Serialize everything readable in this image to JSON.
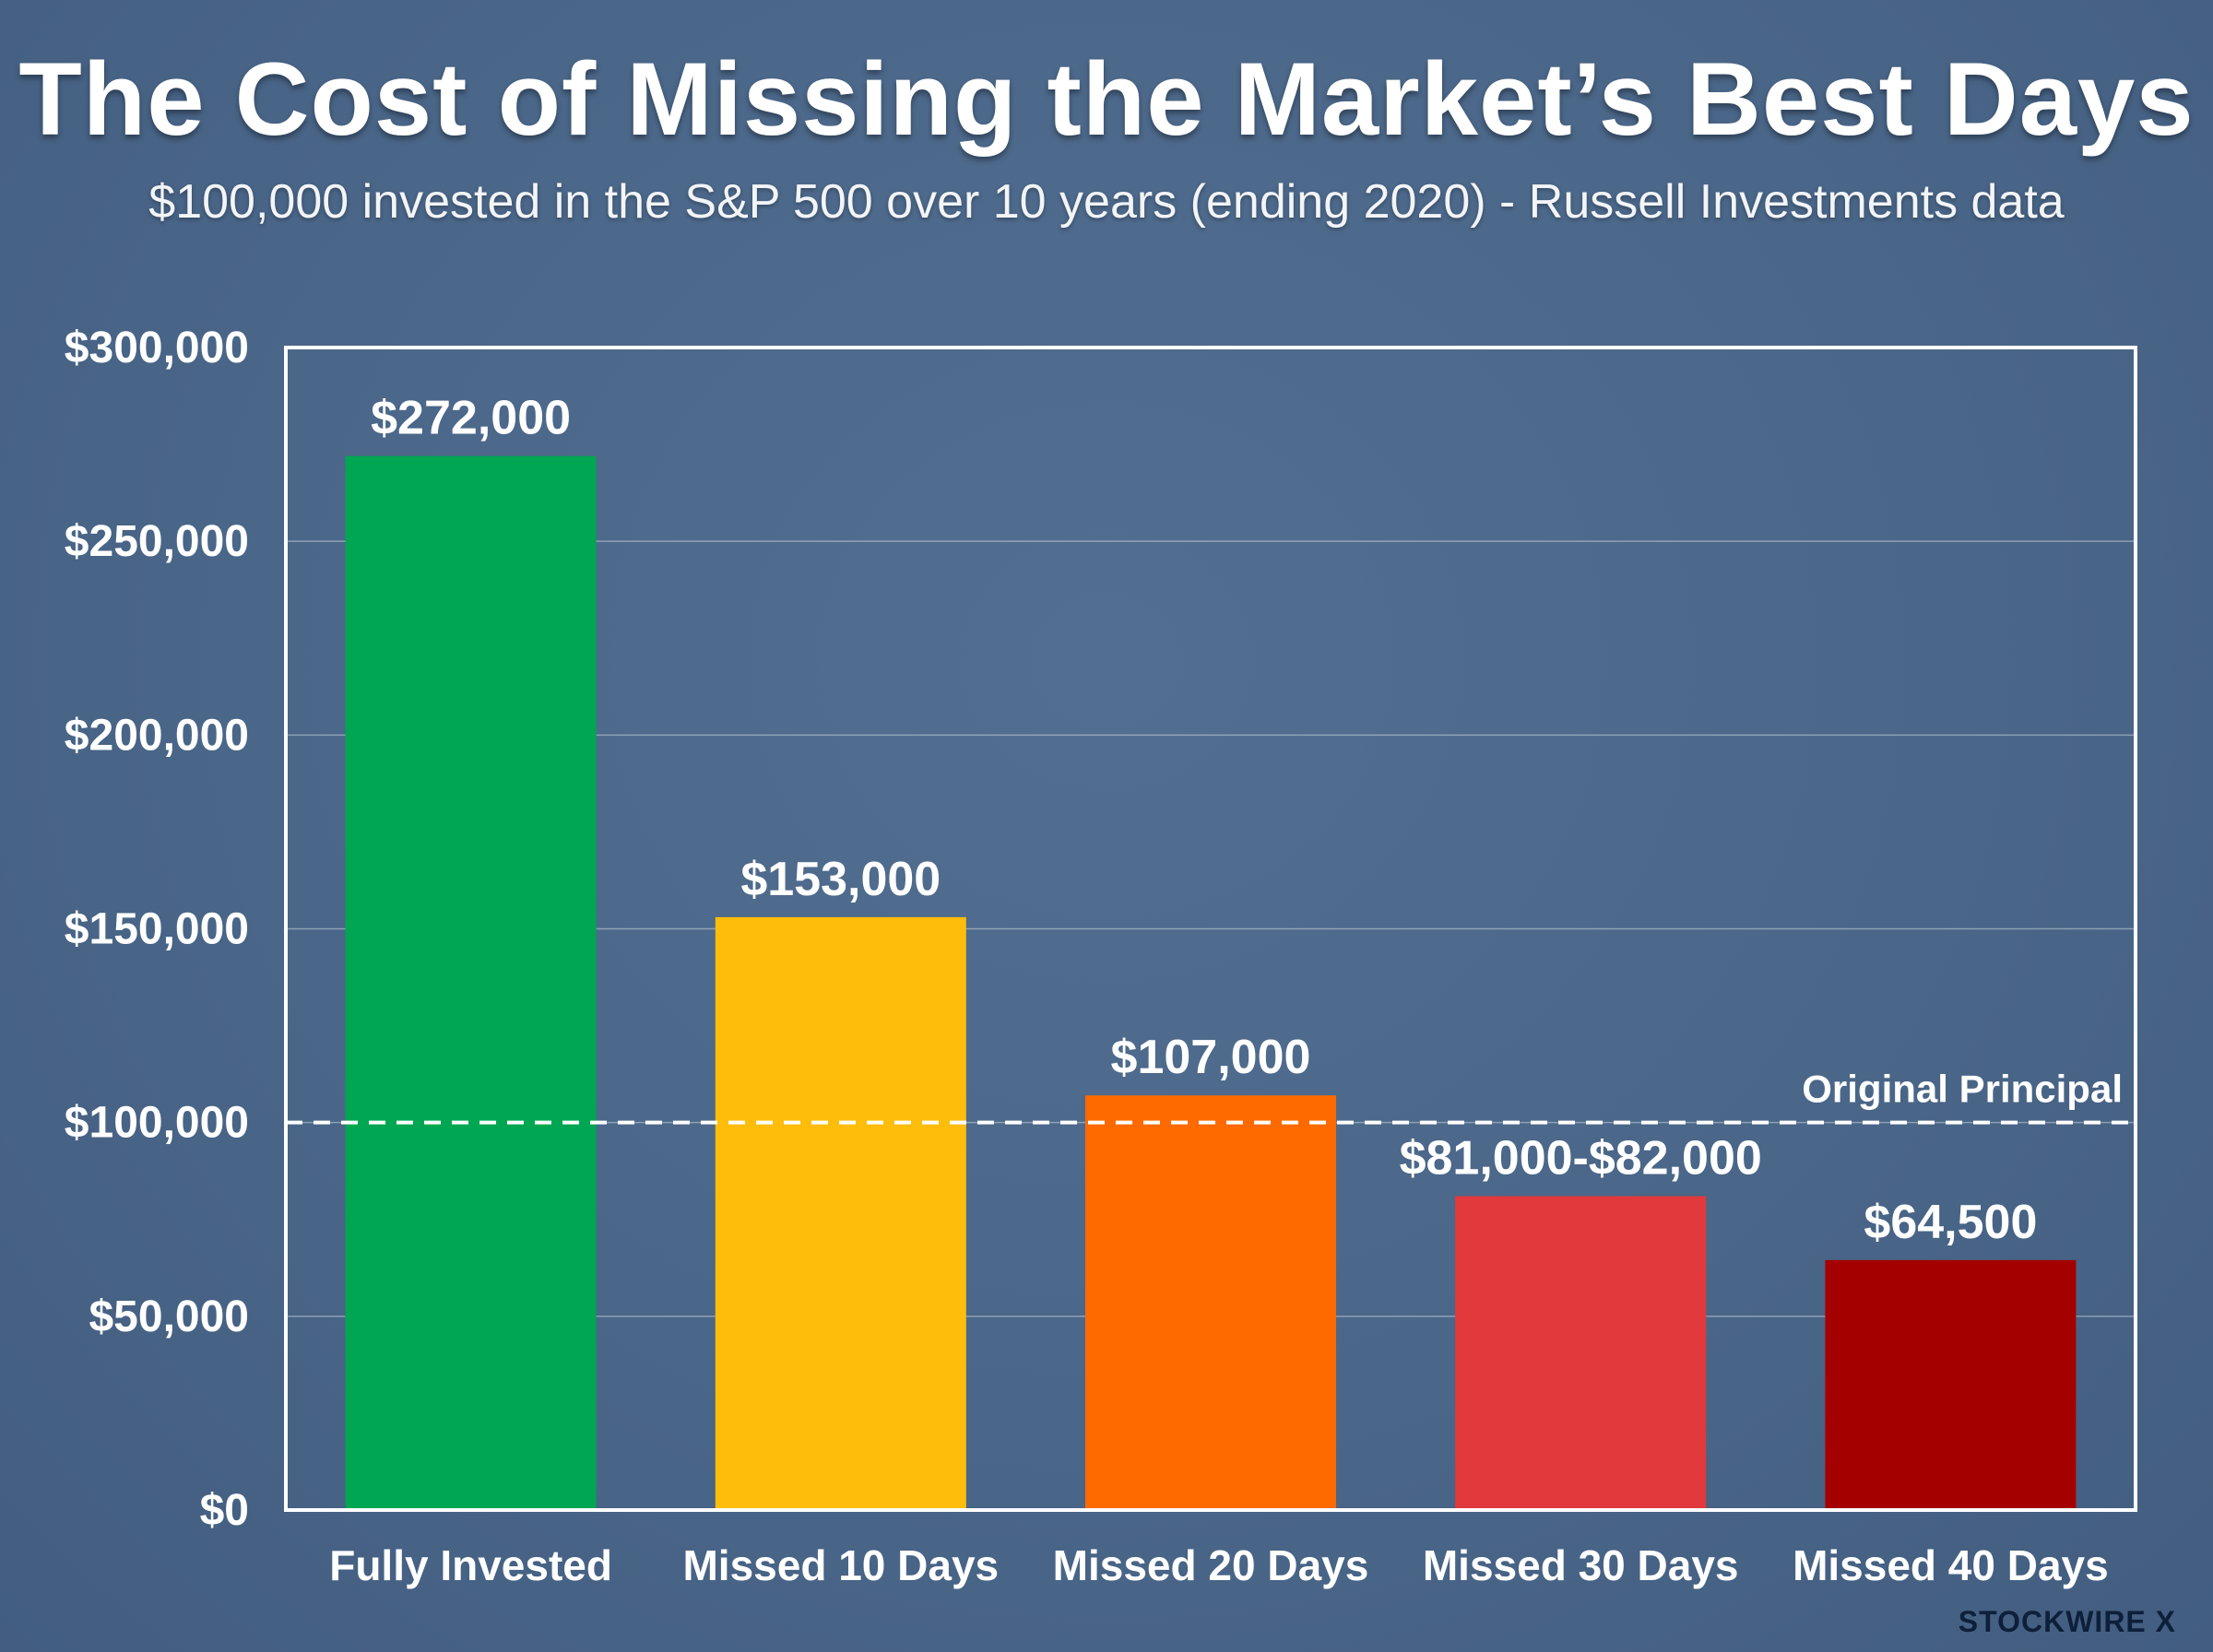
{
  "header": {
    "title": "The Cost of Missing the Market’s Best Days",
    "subtitle": "$100,000 invested in the S&P 500 over 10 years (ending 2020) - Russell Investments data"
  },
  "brand": {
    "label": "STOCKWIRE X"
  },
  "chart_data": {
    "type": "bar",
    "title": "The Cost of Missing the Market’s Best Days",
    "subtitle": "$100,000 invested in the S&P 500 over 10 years (ending 2020) - Russell Investments data",
    "xlabel": "",
    "ylabel": "",
    "ylim": [
      0,
      300000
    ],
    "grid": true,
    "y_ticks": [
      0,
      50000,
      100000,
      150000,
      200000,
      250000,
      300000
    ],
    "y_tick_labels": [
      "$0",
      "$50,000",
      "$100,000",
      "$150,000",
      "$200,000",
      "$250,000",
      "$300,000"
    ],
    "categories": [
      "Fully Invested",
      "Missed 10 Days",
      "Missed 20 Days",
      "Missed 30 Days",
      "Missed 40 Days"
    ],
    "values": [
      272000,
      153000,
      107000,
      81000,
      64500
    ],
    "value_labels": [
      "$272,000",
      "$153,000",
      "$107,000",
      "$81,000-$82,000",
      "$64,500"
    ],
    "colors": [
      "#00a651",
      "#fdbd0a",
      "#ff6a00",
      "#e2393d",
      "#a50000"
    ],
    "reference_line": {
      "value": 100000,
      "label": "Original Principal",
      "style": "dashed",
      "color": "#ffffff"
    }
  }
}
